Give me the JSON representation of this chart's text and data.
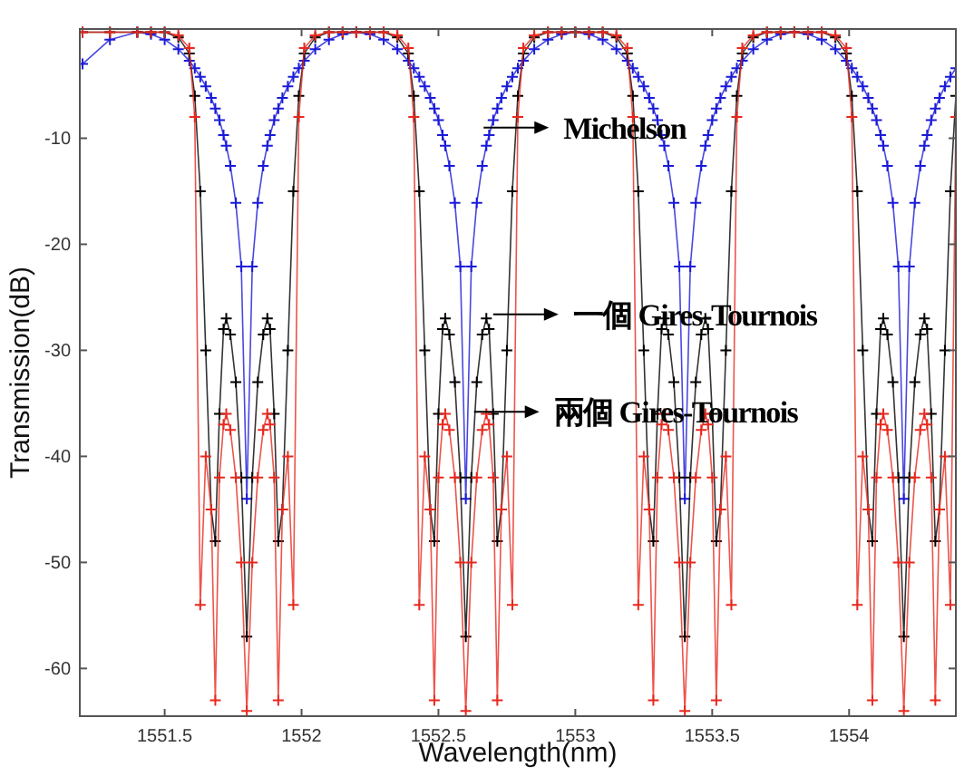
{
  "chart_data": {
    "type": "line",
    "xlabel": "Wavelength(nm)",
    "ylabel": "Transmission(dB)",
    "marker": "cross",
    "line_style": "solid",
    "xlim": [
      1551.19,
      1554.39
    ],
    "ylim": [
      -64.5,
      0.3
    ],
    "xticks": [
      1551.5,
      1552,
      1552.5,
      1553,
      1553.5,
      1554
    ],
    "yticks": [
      -60,
      -50,
      -40,
      -30,
      -20,
      -10
    ],
    "x": [
      1551.2,
      1551.3,
      1551.4,
      1551.45,
      1551.5,
      1551.55,
      1551.59,
      1551.61,
      1551.63,
      1551.65,
      1551.67,
      1551.685,
      1551.7,
      1551.715,
      1551.725,
      1551.74,
      1551.76,
      1551.78,
      1551.8,
      1551.82,
      1551.84,
      1551.86,
      1551.875,
      1551.885,
      1551.9,
      1551.915,
      1551.93,
      1551.95,
      1551.97,
      1551.99,
      1552.01,
      1552.05,
      1552.1,
      1552.15,
      1552.2,
      1552.25,
      1552.3,
      1552.35,
      1552.39,
      1552.41,
      1552.43,
      1552.45,
      1552.47,
      1552.485,
      1552.5,
      1552.515,
      1552.525,
      1552.54,
      1552.56,
      1552.58,
      1552.6,
      1552.62,
      1552.64,
      1552.66,
      1552.675,
      1552.685,
      1552.7,
      1552.715,
      1552.73,
      1552.75,
      1552.77,
      1552.79,
      1552.81,
      1552.85,
      1552.9,
      1552.95,
      1553.0,
      1553.05,
      1553.1,
      1553.15,
      1553.19,
      1553.21,
      1553.23,
      1553.25,
      1553.27,
      1553.285,
      1553.3,
      1553.315,
      1553.325,
      1553.34,
      1553.36,
      1553.38,
      1553.4,
      1553.42,
      1553.44,
      1553.46,
      1553.475,
      1553.485,
      1553.5,
      1553.515,
      1553.53,
      1553.55,
      1553.57,
      1553.59,
      1553.61,
      1553.65,
      1553.7,
      1553.75,
      1553.8,
      1553.85,
      1553.9,
      1553.95,
      1553.99,
      1554.01,
      1554.03,
      1554.05,
      1554.07,
      1554.085,
      1554.1,
      1554.115,
      1554.125,
      1554.14,
      1554.16,
      1554.18,
      1554.2,
      1554.22,
      1554.24,
      1554.26,
      1554.275,
      1554.285,
      1554.3,
      1554.315,
      1554.33,
      1554.35,
      1554.37,
      1554.39
    ],
    "series": [
      {
        "color": "#1a1ad8",
        "values": [
          -3.0,
          -0.7,
          0,
          -0.2,
          -0.7,
          -1.6,
          -2.7,
          -3.4,
          -4.2,
          -5.1,
          -6.2,
          -7.2,
          -8.3,
          -9.7,
          -10.7,
          -12.6,
          -16.1,
          -22.1,
          -44,
          -22.1,
          -16.1,
          -12.6,
          -10.7,
          -9.7,
          -8.3,
          -7.2,
          -6.2,
          -5.1,
          -4.2,
          -3.4,
          -2.7,
          -1.6,
          -0.7,
          -0.2,
          0,
          -0.2,
          -0.7,
          -1.6,
          -2.7,
          -3.4,
          -4.2,
          -5.1,
          -6.2,
          -7.2,
          -8.3,
          -9.7,
          -10.7,
          -12.6,
          -16.1,
          -22.1,
          -44,
          -22.1,
          -16.1,
          -12.6,
          -10.7,
          -9.7,
          -8.3,
          -7.2,
          -6.2,
          -5.1,
          -4.2,
          -3.4,
          -2.7,
          -1.6,
          -0.7,
          -0.2,
          0,
          -0.2,
          -0.7,
          -1.6,
          -2.7,
          -3.4,
          -4.2,
          -5.1,
          -6.2,
          -7.2,
          -8.3,
          -9.7,
          -10.7,
          -12.6,
          -16.1,
          -22.1,
          -44,
          -22.1,
          -16.1,
          -12.6,
          -10.7,
          -9.7,
          -8.3,
          -7.2,
          -6.2,
          -5.1,
          -4.2,
          -3.4,
          -2.7,
          -1.6,
          -0.7,
          -0.2,
          0,
          -0.2,
          -0.7,
          -1.6,
          -2.7,
          -3.4,
          -4.2,
          -5.1,
          -6.2,
          -7.2,
          -8.3,
          -9.7,
          -10.7,
          -12.6,
          -16.1,
          -22.1,
          -44,
          -22.1,
          -16.1,
          -12.6,
          -10.7,
          -9.7,
          -8.3,
          -7.2,
          -6.2,
          -5.1,
          -4.2,
          -3.4
        ]
      },
      {
        "color": "#000000",
        "values": [
          0,
          0,
          0,
          0,
          0,
          -0.5,
          -2,
          -6,
          -15,
          -30,
          -45,
          -48,
          -36,
          -28,
          -27,
          -28.5,
          -33,
          -42,
          -57,
          -42,
          -33,
          -28.5,
          -27,
          -28,
          -36,
          -48,
          -45,
          -30,
          -15,
          -6,
          -2,
          -0.5,
          0,
          0,
          0,
          0,
          0,
          -0.5,
          -2,
          -6,
          -15,
          -30,
          -45,
          -48,
          -36,
          -28,
          -27,
          -28.5,
          -33,
          -42,
          -57,
          -42,
          -33,
          -28.5,
          -27,
          -28,
          -36,
          -48,
          -45,
          -30,
          -15,
          -6,
          -2,
          -0.5,
          0,
          0,
          0,
          0,
          0,
          -0.5,
          -2,
          -6,
          -15,
          -30,
          -45,
          -48,
          -36,
          -28,
          -27,
          -28.5,
          -33,
          -42,
          -57,
          -42,
          -33,
          -28.5,
          -27,
          -28,
          -36,
          -48,
          -45,
          -30,
          -15,
          -6,
          -2,
          -0.5,
          0,
          0,
          0,
          0,
          0,
          -0.5,
          -2,
          -6,
          -15,
          -30,
          -45,
          -48,
          -36,
          -28,
          -27,
          -28.5,
          -33,
          -42,
          -57,
          -42,
          -33,
          -28.5,
          -27,
          -28,
          -36,
          -48,
          -45,
          -30,
          -15,
          -6
        ]
      },
      {
        "color": "#e8281e",
        "values": [
          0,
          0,
          0,
          0,
          0,
          -0.3,
          -1.5,
          -8,
          -54,
          -40,
          -45,
          -63,
          -42,
          -37,
          -36,
          -37.5,
          -42,
          -50,
          -64,
          -50,
          -42,
          -37.5,
          -36,
          -37,
          -42,
          -63,
          -45,
          -40,
          -54,
          -8,
          -1.5,
          -0.3,
          0,
          0,
          0,
          0,
          0,
          -0.3,
          -1.5,
          -8,
          -54,
          -40,
          -45,
          -63,
          -42,
          -37,
          -36,
          -37.5,
          -42,
          -50,
          -64,
          -50,
          -42,
          -37.5,
          -36,
          -37,
          -42,
          -63,
          -45,
          -40,
          -54,
          -8,
          -1.5,
          -0.3,
          0,
          0,
          0,
          0,
          0,
          -0.3,
          -1.5,
          -8,
          -54,
          -40,
          -45,
          -63,
          -42,
          -37,
          -36,
          -37.5,
          -42,
          -50,
          -64,
          -50,
          -42,
          -37.5,
          -36,
          -37,
          -42,
          -63,
          -45,
          -40,
          -54,
          -8,
          -1.5,
          -0.3,
          0,
          0,
          0,
          0,
          0,
          -0.3,
          -1.5,
          -8,
          -54,
          -40,
          -45,
          -63,
          -42,
          -37,
          -36,
          -37.5,
          -42,
          -50,
          -64,
          -50,
          -42,
          -37.5,
          -36,
          -37,
          -42,
          -63,
          -45,
          -40,
          -54,
          -8
        ]
      }
    ],
    "annotations": [
      {
        "text": "Michelson",
        "x": 1552.665,
        "y": -9
      },
      {
        "text": "一個 Gires-Tournois",
        "x": 1552.7,
        "y": -26.6
      },
      {
        "text": "兩個 Gires-Tournois",
        "x": 1552.63,
        "y": -35.8
      }
    ]
  }
}
